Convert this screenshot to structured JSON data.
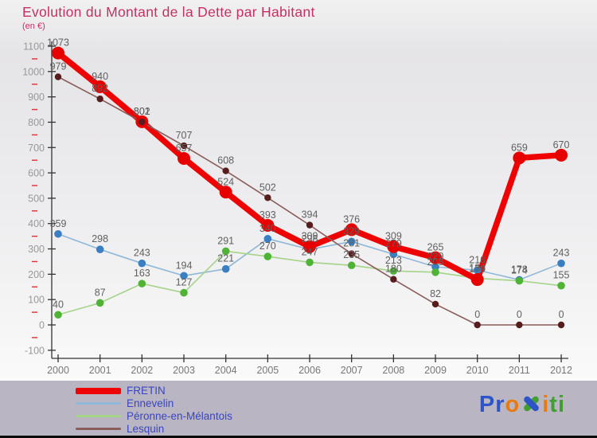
{
  "header": {
    "title": "Evolution du Montant de la Dette par Habitant",
    "subtitle": "(en €)",
    "title_color": "#c43063"
  },
  "chart_data": {
    "type": "line",
    "title": "Evolution du Montant de la Dette par Habitant",
    "subtitle": "(en €)",
    "x": [
      "2000",
      "2001",
      "2002",
      "2003",
      "2004",
      "2005",
      "2006",
      "2007",
      "2008",
      "2009",
      "2010",
      "2011",
      "2012"
    ],
    "ylim": [
      -100,
      1100
    ],
    "ytick_step": 100,
    "minor_tick_step": 50,
    "grid": false,
    "legend_position": "bottom-left",
    "axis": {
      "axis_color": "#333333",
      "ytick_label_color": "#999999",
      "xtick_label_color": "#777777",
      "minor_tick_color": "#e03030",
      "value_label_color": "#606060"
    },
    "series": [
      {
        "name": "FRETIN",
        "line_color": "#ee0202",
        "marker_color": "#e60000",
        "values": [
          1073,
          940,
          802,
          657,
          524,
          393,
          309,
          376,
          309,
          265,
          179,
          659,
          670
        ]
      },
      {
        "name": "Ennevelin",
        "line_color": "#8fb8d8",
        "marker_color": "#3a7fc1",
        "values": [
          359,
          298,
          243,
          194,
          221,
          340,
          298,
          329,
          279,
          229,
          216,
          178,
          243
        ]
      },
      {
        "name": "Péronne-en-Mélantois",
        "line_color": "#a5d489",
        "marker_color": "#4fb436",
        "values": [
          40,
          87,
          163,
          127,
          291,
          270,
          247,
          235,
          213,
          208,
          184,
          174,
          155
        ]
      },
      {
        "name": "Lesquin",
        "line_color": "#8a5c5c",
        "marker_color": "#571c1c",
        "values": [
          979,
          892,
          801,
          707,
          608,
          502,
          394,
          281,
          180,
          82,
          0,
          0,
          0
        ]
      }
    ]
  },
  "legend": {
    "text_color": "#3a46c0"
  },
  "logo": {
    "text": "Proxiti",
    "colors": [
      "#2d55c8",
      "#2d55c8",
      "#e87a10",
      "#2d55c8",
      "#e87a10",
      "#3f9f2f",
      "#3f9f2f"
    ]
  }
}
